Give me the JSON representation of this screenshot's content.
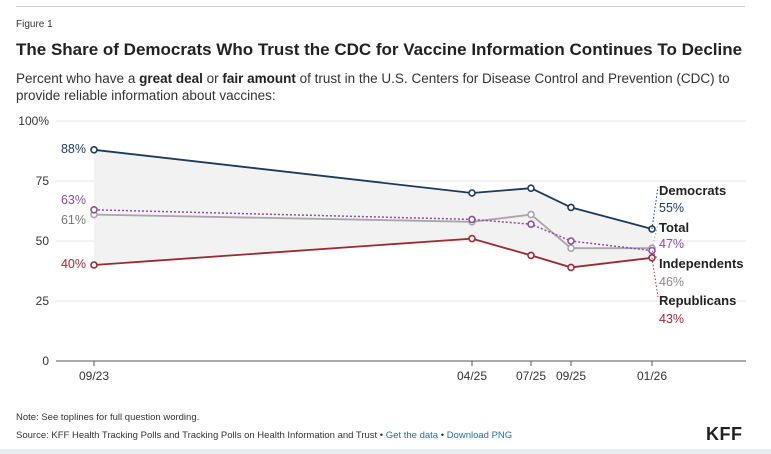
{
  "figure_label": "Figure 1",
  "title": "The Share of Democrats Who Trust the CDC for Vaccine Information Continues To Decline",
  "subtitle": {
    "pre": "Percent who have a ",
    "bold1": "great deal",
    "mid": " or ",
    "bold2": "fair amount",
    "post": " of trust in the U.S. Centers for Disease Control and Prevention (CDC) to provide reliable information about vaccines:"
  },
  "note": "Note: See toplines for full question wording.",
  "source": {
    "text": "Source: KFF Health Tracking Polls and Tracking Polls on Health Information and Trust",
    "sep": " • ",
    "get_data": "Get the data",
    "download": "Download PNG"
  },
  "logo": "KFF",
  "chart_data": {
    "type": "line",
    "x": [
      "09/23",
      "04/25",
      "07/25",
      "09/25",
      "01/26"
    ],
    "y_ticks": [
      "0",
      "25",
      "50",
      "75",
      "100%"
    ],
    "ylim": [
      0,
      100
    ],
    "grid": true,
    "series": [
      {
        "name": "Democrats",
        "values": [
          88,
          70,
          72,
          64,
          55
        ],
        "color": "#1b3a5c",
        "start_label": "88%",
        "end_label": "55%",
        "dashed": false
      },
      {
        "name": "Total",
        "values": [
          61,
          58,
          61,
          47,
          47
        ],
        "color": "#a7a7a7",
        "start_label": "61%",
        "end_label": "47%",
        "end_color": "#8e4c9e",
        "dashed": false
      },
      {
        "name": "Independents",
        "values": [
          63,
          59,
          57,
          50,
          46
        ],
        "color": "#8e4c9e",
        "start_label": "63%",
        "end_label": "46%",
        "end_color": "#8a8a8a",
        "dashed": true
      },
      {
        "name": "Republicans",
        "values": [
          40,
          51,
          44,
          39,
          43
        ],
        "color": "#9b2a32",
        "start_label": "40%",
        "end_label": "43%",
        "dashed": false
      }
    ]
  }
}
